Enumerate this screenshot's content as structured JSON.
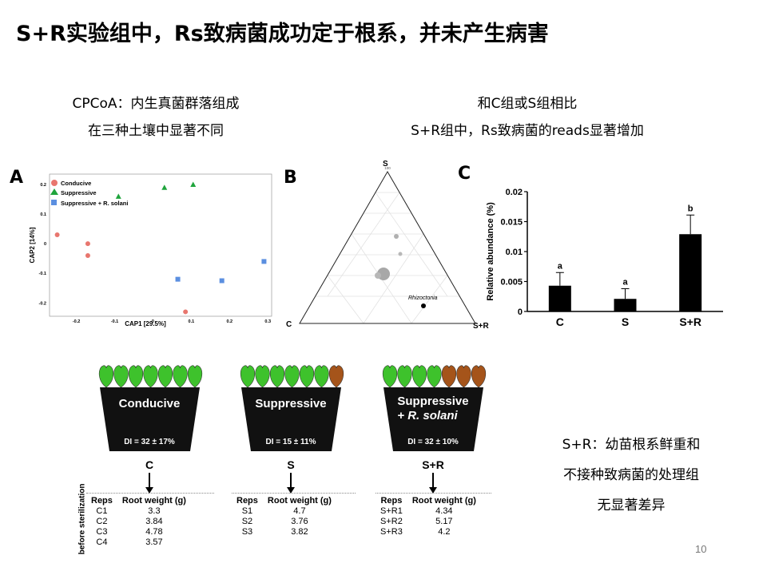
{
  "slide": {
    "title": "S+R实验组中，Rs致病菌成功定于根系，并未产生病害",
    "note_left": [
      "CPCoA：内生真菌群落组成",
      "在三种土壤中显著不同"
    ],
    "note_right": [
      "和C组或S组相比",
      "S+R组中，Rs致病菌的reads显著增加"
    ],
    "note_bottom": [
      "S+R：幼苗根系鲜重和",
      "不接种致病菌的处理组",
      "无显著差异"
    ],
    "page_number": "10"
  },
  "colors": {
    "conducive": "#e8766e",
    "suppressive": "#1fa43c",
    "suppressive_rs": "#5b8fe0",
    "healthy_leaf": "#3ec22c",
    "sick_leaf": "#a5541a",
    "pot": "#111111"
  },
  "panel_a": {
    "letter": "A",
    "xlabel": "CAP1   [29.5%]",
    "ylabel": "CAP2   [14%]",
    "legend": [
      "Conducive",
      "Suppressive",
      "Suppressive + R. solani"
    ],
    "chart_data": {
      "type": "scatter",
      "xlabel": "CAP1   [29.5%]",
      "ylabel": "CAP2   [14%]",
      "xlim": [
        -0.27,
        0.31
      ],
      "ylim": [
        -0.245,
        0.235
      ],
      "xticks": [
        -0.2,
        -0.1,
        0,
        0.1,
        0.2,
        0.3
      ],
      "xtick_labels": [
        "-0.2",
        "-0.1",
        "0",
        "0.1",
        "0.2",
        "0.3"
      ],
      "yticks": [
        -0.2,
        -0.1,
        0,
        0.1,
        0.2
      ],
      "ytick_labels": [
        "-0.2",
        "-0.1",
        "0",
        "0.1",
        "0.2"
      ],
      "series": [
        {
          "name": "Conducive",
          "marker": "circle",
          "points": [
            [
              -0.25,
              0.03
            ],
            [
              -0.17,
              0.0
            ],
            [
              -0.17,
              -0.04
            ],
            [
              0.085,
              -0.23
            ]
          ]
        },
        {
          "name": "Suppressive",
          "marker": "triangle",
          "points": [
            [
              -0.09,
              0.16
            ],
            [
              0.03,
              0.19
            ],
            [
              0.105,
              0.2
            ]
          ]
        },
        {
          "name": "Suppressive + R. solani",
          "marker": "square",
          "points": [
            [
              0.065,
              -0.12
            ],
            [
              0.18,
              -0.125
            ],
            [
              0.29,
              -0.06
            ]
          ]
        }
      ]
    }
  },
  "panel_b": {
    "letter": "B",
    "vertex_top": "S",
    "vertex_left": "C",
    "vertex_right": "S+R",
    "top_tick": "100",
    "annotation": "Rhizoctonia"
  },
  "panel_c": {
    "letter": "C",
    "chart_data": {
      "type": "bar",
      "categories": [
        "C",
        "S",
        "S+R"
      ],
      "values": [
        0.0043,
        0.0021,
        0.0129
      ],
      "errors": [
        0.0022,
        0.0017,
        0.0032
      ],
      "significance": [
        "a",
        "a",
        "b"
      ],
      "ylabel": "Relative abundance (%)",
      "ylim": [
        0,
        0.02
      ],
      "yticks": [
        0,
        0.005,
        0.01,
        0.015,
        0.02
      ],
      "ytick_labels": [
        "0",
        "0.005",
        "0.01",
        "0.015",
        "0.02"
      ]
    }
  },
  "pots": [
    {
      "label": "Conducive",
      "label_line2": "",
      "di": "DI = 32 ± 17%",
      "group": "C",
      "healthy": 7,
      "sick": 0
    },
    {
      "label": "Suppressive",
      "label_line2": "",
      "di": "DI = 15 ± 11%",
      "group": "S",
      "healthy": 6,
      "sick": 1
    },
    {
      "label": "Suppressive",
      "label_line2": "+ R. solani",
      "di": "DI = 32 ± 10%",
      "group": "S+R",
      "healthy": 4,
      "sick": 3
    }
  ],
  "tables": {
    "side_label": "before sterilization",
    "headers": [
      "Reps",
      "Root weight (g)"
    ],
    "c": [
      [
        "C1",
        "3.3"
      ],
      [
        "C2",
        "3.84"
      ],
      [
        "C3",
        "4.78"
      ],
      [
        "C4",
        "3.57"
      ]
    ],
    "s": [
      [
        "S1",
        "4.7"
      ],
      [
        "S2",
        "3.76"
      ],
      [
        "S3",
        "3.82"
      ]
    ],
    "sr": [
      [
        "S+R1",
        "4.34"
      ],
      [
        "S+R2",
        "5.17"
      ],
      [
        "S+R3",
        "4.2"
      ]
    ]
  }
}
